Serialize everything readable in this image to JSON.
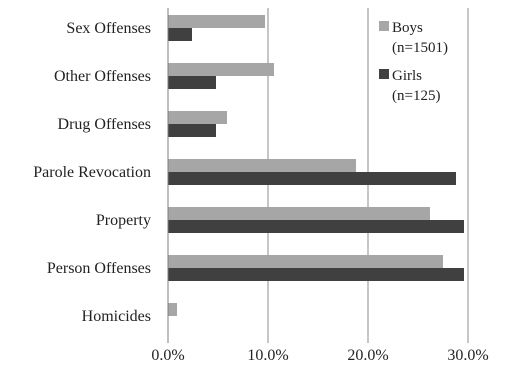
{
  "chart_data": {
    "type": "bar",
    "orientation": "horizontal",
    "categories": [
      "Sex Offenses",
      "Other Offenses",
      "Drug Offenses",
      "Parole Revocation",
      "Property",
      "Person Offenses",
      "Homicides"
    ],
    "series": [
      {
        "name": "Boys",
        "n_label": "(n=1501)",
        "color": "#a6a6a6",
        "values": [
          9.7,
          10.6,
          5.9,
          18.8,
          26.2,
          27.5,
          0.9
        ]
      },
      {
        "name": "Girls",
        "n_label": "(n=125)",
        "color": "#404040",
        "values": [
          2.4,
          4.8,
          4.8,
          28.8,
          29.6,
          29.6,
          0.0
        ]
      }
    ],
    "xlim": [
      0,
      30
    ],
    "xticks": [
      0,
      10,
      20,
      30
    ],
    "xtick_labels": [
      "0.0%",
      "10.0%",
      "20.0%",
      "30.0%"
    ],
    "grid": "vertical",
    "legend_position": "top-right"
  }
}
